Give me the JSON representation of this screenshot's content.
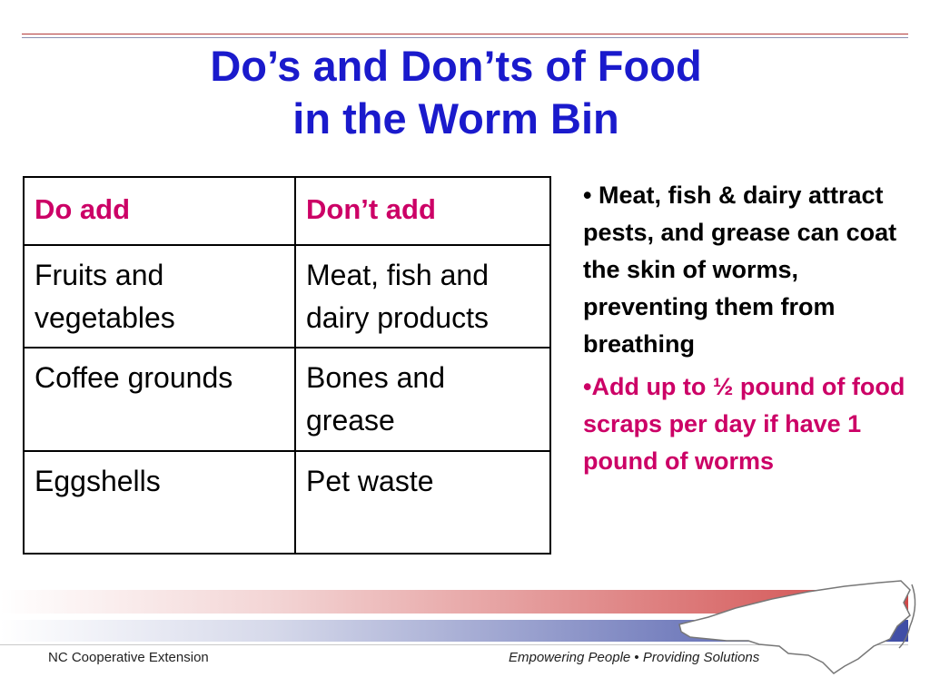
{
  "title": {
    "line1": "Do’s and Don’ts of Food",
    "line2": "in the Worm Bin"
  },
  "table": {
    "headers": [
      "Do add",
      "Don’t add"
    ],
    "rows": [
      [
        "Fruits and vegetables",
        "Meat, fish and dairy products"
      ],
      [
        "Coffee grounds",
        "Bones and grease"
      ],
      [
        "Eggshells",
        "Pet waste"
      ]
    ]
  },
  "notes": [
    "• Meat, fish & dairy attract pests, and grease can coat the skin of worms, preventing them from breathing",
    "•Add up to ½ pound of food scraps per day if have 1 pound of worms"
  ],
  "footer": {
    "left": "NC Cooperative Extension",
    "right_a": "Empowering People",
    "bullet": "•",
    "right_b": "Providing Solutions"
  },
  "colors": {
    "title": "#1a1acc",
    "table_header": "#cc0066",
    "note_highlight": "#cc0066",
    "brand_red": "#d04848",
    "brand_blue": "#3f4da5"
  },
  "icons": {
    "state_map": "north-carolina-map-icon"
  }
}
